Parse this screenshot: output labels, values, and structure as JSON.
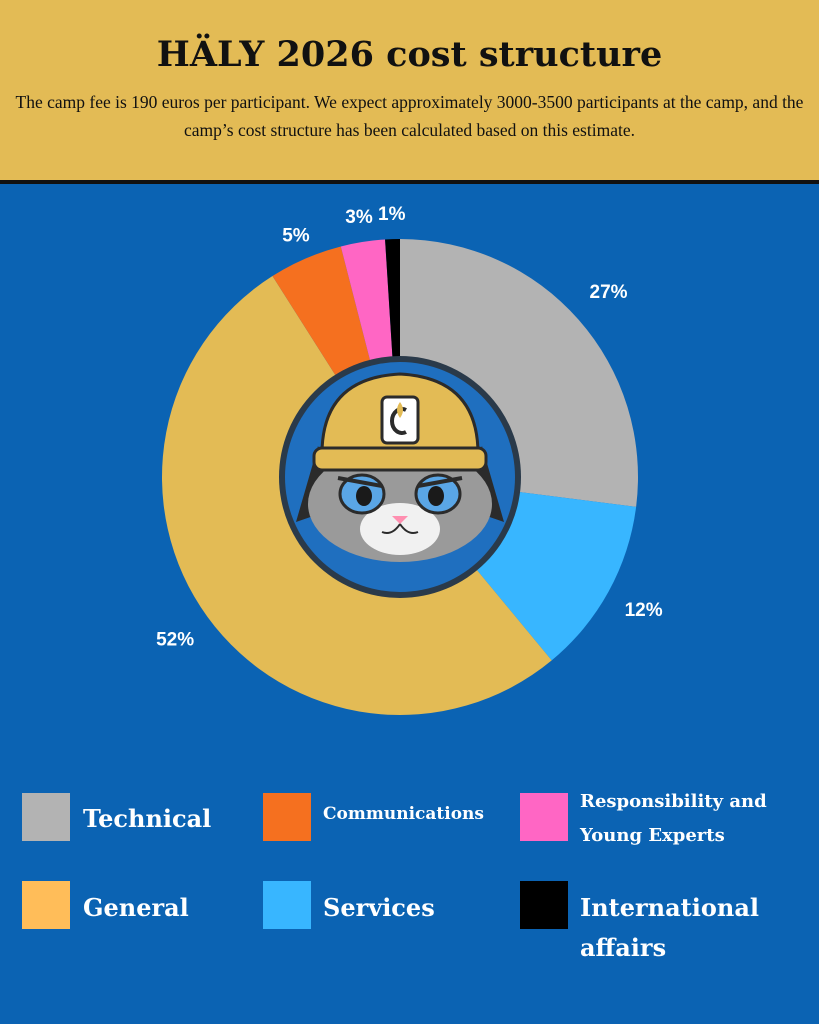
{
  "header": {
    "title": "HÄLY 2026 cost structure",
    "subtitle": "The camp fee is 190 euros per participant. We expect approximately 3000-3500 participants at the camp, and the camp’s cost structure has been calculated based on this estimate."
  },
  "chart_data": {
    "type": "pie",
    "style": "donut",
    "title": "HÄLY 2026 cost structure",
    "slices": [
      {
        "name": "Technical",
        "value": 27,
        "label": "27%",
        "color": "#b3b3b3"
      },
      {
        "name": "Services",
        "value": 12,
        "label": "12%",
        "color": "#38b6ff"
      },
      {
        "name": "General",
        "value": 52,
        "label": "52%",
        "color": "#e3bb55"
      },
      {
        "name": "Communications",
        "value": 5,
        "label": "5%",
        "color": "#f5701f"
      },
      {
        "name": "Responsibility and Young Experts",
        "value": 3,
        "label": "3%",
        "color": "#ff66c4"
      },
      {
        "name": "International affairs",
        "value": 1,
        "label": "1%",
        "color": "#000000"
      }
    ],
    "legend_placement": "bottom"
  },
  "legend": {
    "technical": "Technical",
    "communications": "Communications",
    "responsibility_line1": "Responsibility and",
    "responsibility_line2": "Young Experts",
    "general": "General",
    "services": "Services",
    "international_line1": "International",
    "international_line2": "affairs"
  },
  "colors": {
    "background": "#0b63b3",
    "header_background": "#e3bb55",
    "center_ring": "#1f6fbf",
    "helmet": "#e3bb55"
  },
  "center_image": "cat-mascot-with-yellow-helmet"
}
